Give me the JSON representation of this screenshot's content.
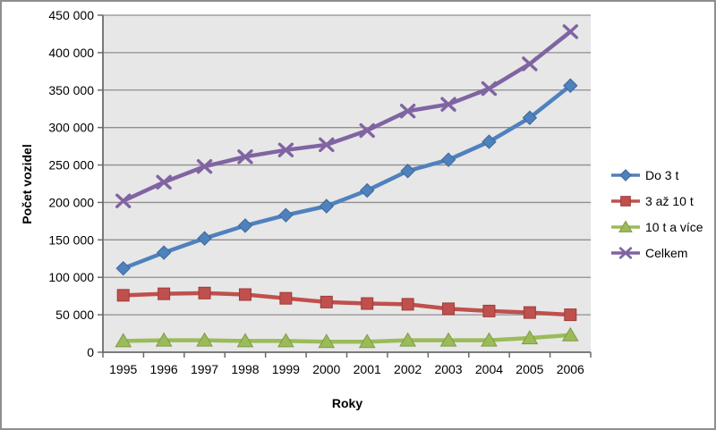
{
  "chart": {
    "y_axis_title": "Počet vozidel",
    "x_axis_title": "Roky"
  },
  "chart_data": {
    "type": "line",
    "title": "",
    "xlabel": "Roky",
    "ylabel": "Počet vozidel",
    "categories": [
      "1995",
      "1996",
      "1997",
      "1998",
      "1999",
      "2000",
      "2001",
      "2002",
      "2003",
      "2004",
      "2005",
      "2006"
    ],
    "series": [
      {
        "name": "Do 3 t",
        "marker": "diamond",
        "color": "#4f81bd",
        "marker_edge": "#3a689c",
        "values": [
          112000,
          133000,
          152000,
          169000,
          183000,
          195000,
          216000,
          242000,
          257000,
          281000,
          313000,
          356000
        ]
      },
      {
        "name": "3 až 10 t",
        "marker": "square",
        "color": "#c0504d",
        "marker_edge": "#9e3b38",
        "values": [
          76000,
          78000,
          79000,
          77000,
          72000,
          67000,
          65000,
          64000,
          58000,
          55000,
          53000,
          50000
        ]
      },
      {
        "name": "10 t a více",
        "marker": "triangle",
        "color": "#9bbb59",
        "marker_edge": "#7e9b45",
        "values": [
          15000,
          16000,
          16000,
          15000,
          15000,
          14000,
          14000,
          16000,
          16000,
          16000,
          19000,
          23000
        ]
      },
      {
        "name": "Celkem",
        "marker": "x",
        "color": "#8064a2",
        "marker_edge": "#695186",
        "values": [
          202000,
          227000,
          248000,
          261000,
          270000,
          277000,
          296000,
          322000,
          331000,
          352000,
          385000,
          428000
        ]
      }
    ],
    "ylim": [
      0,
      450000
    ],
    "y_ticks": [
      0,
      50000,
      100000,
      150000,
      200000,
      250000,
      300000,
      350000,
      400000,
      450000
    ],
    "y_tick_labels": [
      "0",
      "50 000",
      "100 000",
      "150 000",
      "200 000",
      "250 000",
      "300 000",
      "350 000",
      "400 000",
      "450 000"
    ],
    "grid": true,
    "legend_position": "right",
    "colors": {
      "figure_bg": "#ffffff",
      "figure_border": "#8f8f8f",
      "plot_bg": "#e7e7e7",
      "grid": "#8f8f8f",
      "axis": "#6b6b6b",
      "text": "#000000"
    }
  }
}
